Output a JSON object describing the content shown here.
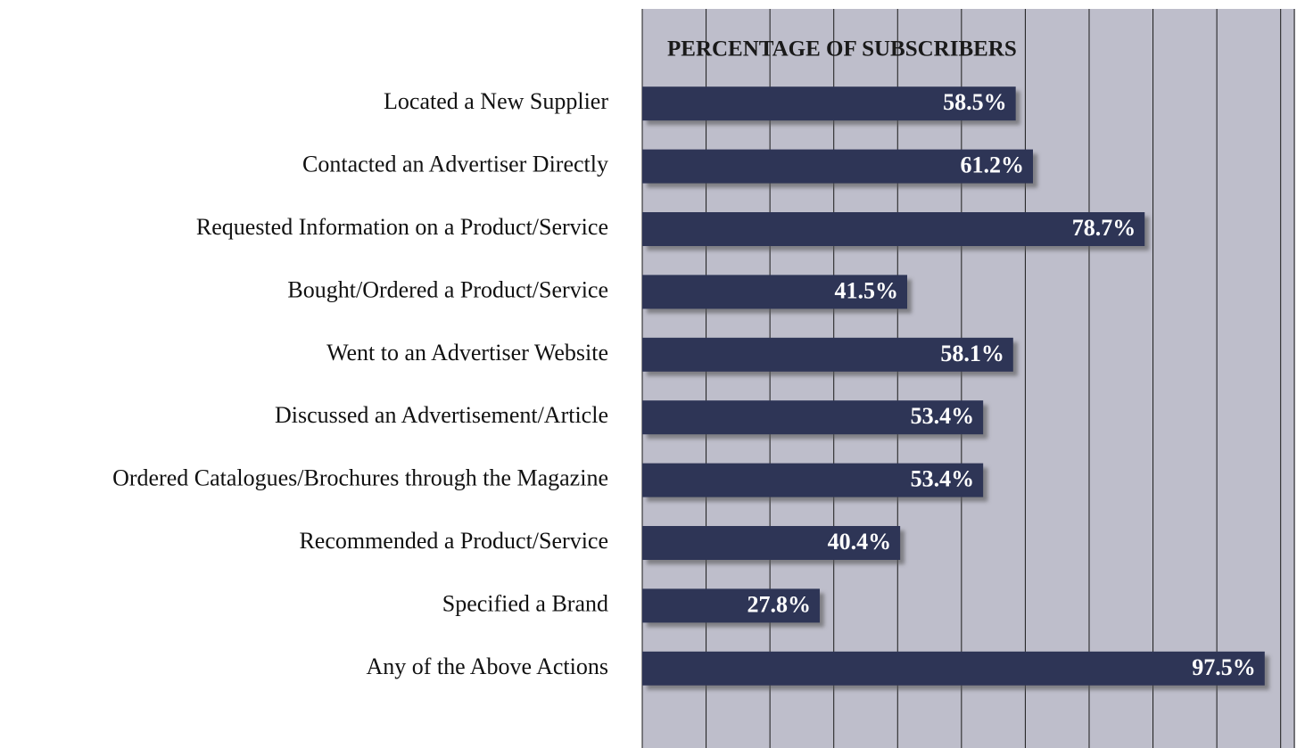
{
  "chart_data": {
    "type": "bar",
    "orientation": "horizontal",
    "title": "PERCENTAGE OF SUBSCRIBERS",
    "categories": [
      "Located a New Supplier",
      "Contacted an Advertiser Directly",
      "Requested Information on a Product/Service",
      "Bought/Ordered a Product/Service",
      "Went to an Advertiser Website",
      "Discussed an Advertisement/Article",
      "Ordered Catalogues/Brochures through the Magazine",
      "Recommended a Product/Service",
      "Specified a Brand",
      "Any of the Above Actions"
    ],
    "values": [
      58.5,
      61.2,
      78.7,
      41.5,
      58.1,
      53.4,
      53.4,
      40.4,
      27.8,
      97.5
    ],
    "value_labels": [
      "58.5%",
      "61.2%",
      "78.7%",
      "41.5%",
      "58.1%",
      "53.4%",
      "53.4%",
      "40.4%",
      "27.8%",
      "97.5%"
    ],
    "color": "#2e3656",
    "xlim": [
      0,
      102
    ],
    "xticks": [
      0,
      10,
      20,
      30,
      40,
      50,
      60,
      70,
      80,
      90,
      100
    ],
    "grid": true
  }
}
